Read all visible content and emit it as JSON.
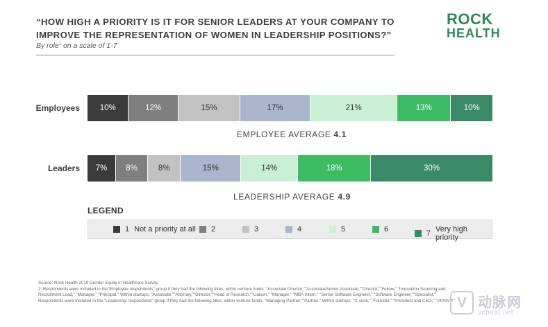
{
  "chart_data": {
    "type": "bar",
    "stacked": true,
    "orientation": "horizontal",
    "title": "“HOW HIGH A PRIORITY IS IT FOR SENIOR LEADERS AT YOUR COMPANY TO IMPROVE THE REPRESENTATION OF WOMEN IN LEADERSHIP POSITIONS?”",
    "subtitle_pre": "By role",
    "subtitle_sup": "1",
    "subtitle_post": " on a scale of 1-7",
    "categories": [
      "Employees",
      "Leaders"
    ],
    "series": [
      {
        "name": "1 Not a priority at all",
        "values": [
          10,
          7
        ]
      },
      {
        "name": "2",
        "values": [
          12,
          8
        ]
      },
      {
        "name": "3",
        "values": [
          15,
          8
        ]
      },
      {
        "name": "4",
        "values": [
          17,
          15
        ]
      },
      {
        "name": "5",
        "values": [
          21,
          14
        ]
      },
      {
        "name": "6",
        "values": [
          13,
          18
        ]
      },
      {
        "name": "7 Very high priority",
        "values": [
          10,
          30
        ]
      }
    ],
    "colors": [
      "#3b3b3b",
      "#7f7f7f",
      "#c2c2c2",
      "#a9b6cd",
      "#c9efd5",
      "#3cbd63",
      "#3a8a67"
    ],
    "text_colors": [
      "#ffffff",
      "#ffffff",
      "#333333",
      "#333333",
      "#333333",
      "#ffffff",
      "#ffffff"
    ],
    "averages": [
      {
        "label": "EMPLOYEE AVERAGE",
        "value": "4.1"
      },
      {
        "label": "LEADERSHIP AVERAGE",
        "value": "4.9"
      }
    ],
    "legend_title": "LEGEND",
    "legend": [
      {
        "num": "1",
        "label": "Not a priority at all"
      },
      {
        "num": "2",
        "label": ""
      },
      {
        "num": "3",
        "label": ""
      },
      {
        "num": "4",
        "label": ""
      },
      {
        "num": "5",
        "label": ""
      },
      {
        "num": "6",
        "label": ""
      },
      {
        "num": "7",
        "label": "Very high priority"
      }
    ]
  },
  "logo": {
    "line1": "ROCK",
    "line2": "HEALTH"
  },
  "notes": [
    "Source: Rock Health 2019 Gender Equity in Healthcare Survey",
    "2: Respondents were included in the\"Employee respondents\" group if they had the following titles, within venture funds: \"Associate Director,\"\"Associate/Senior Associate,\"\"Director,\"\"Fellow,\" \"Innovation Sourcing and Recruitment Lead,\" \"Manager,\" \"Principal.\" Within startups: \"Associate,\"\"Attorney,\"\"Director,\"\"Head of Research,\"\"Liaison,\" \"Manager,\" \"MBA Intern,\" \"Senior Software Engineer,\" \"Software Engineer,\"\"Specialist.\"",
    "Respondents were included in the \"Leadership respondents\" group if they had the following titles, within venture funds: \"Managing Partner,\"\"Partner.\" Within startups: \"C-suite,\" \"Founder,\" \"President and CEO,\" \"VP/SVP.\""
  ],
  "watermark": {
    "mark": "V",
    "name": "动脉网",
    "url": "vcbeat.net"
  }
}
